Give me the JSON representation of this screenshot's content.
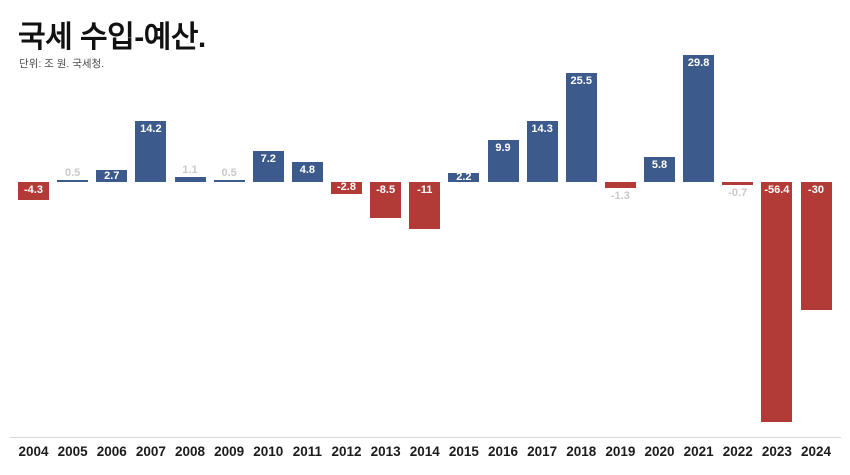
{
  "header": {
    "title": "국세 수입-예산.",
    "subtitle": "단위: 조 원. 국세청."
  },
  "colors": {
    "positive_bar": "#3c5a8b",
    "negative_bar": "#b23b38",
    "label_inside": "#ffffff",
    "label_outside": "#c9c9c9",
    "axis_line": "#d9d9d9",
    "year_label": "#1c1c1c"
  },
  "chart_data": {
    "type": "bar",
    "title": "국세 수입-예산.",
    "subtitle": "단위: 조 원. 국세청.",
    "ylabel": "조 원",
    "xlabel": "",
    "ylim": [
      -60,
      32
    ],
    "grid": false,
    "legend": false,
    "categories": [
      "2004",
      "2005",
      "2006",
      "2007",
      "2008",
      "2009",
      "2010",
      "2011",
      "2012",
      "2013",
      "2014",
      "2015",
      "2016",
      "2017",
      "2018",
      "2019",
      "2020",
      "2021",
      "2022",
      "2023",
      "2024"
    ],
    "values": [
      -4.3,
      0.5,
      2.7,
      14.2,
      1.1,
      0.5,
      7.2,
      4.8,
      -2.8,
      -8.5,
      -11,
      2.2,
      9.9,
      14.3,
      25.5,
      -1.3,
      5.8,
      29.8,
      -0.7,
      -56.4,
      -30
    ],
    "value_labels": [
      "-4.3",
      "0.5",
      "2.7",
      "14.2",
      "1.1",
      "0.5",
      "7.2",
      "4.8",
      "-2.8",
      "-8.5",
      "-11",
      "2.2",
      "9.9",
      "14.3",
      "25.5",
      "-1.3",
      "5.8",
      "29.8",
      "-0.7",
      "-56.4",
      "-30"
    ],
    "positive_color": "#3c5a8b",
    "negative_color": "#b23b38"
  }
}
